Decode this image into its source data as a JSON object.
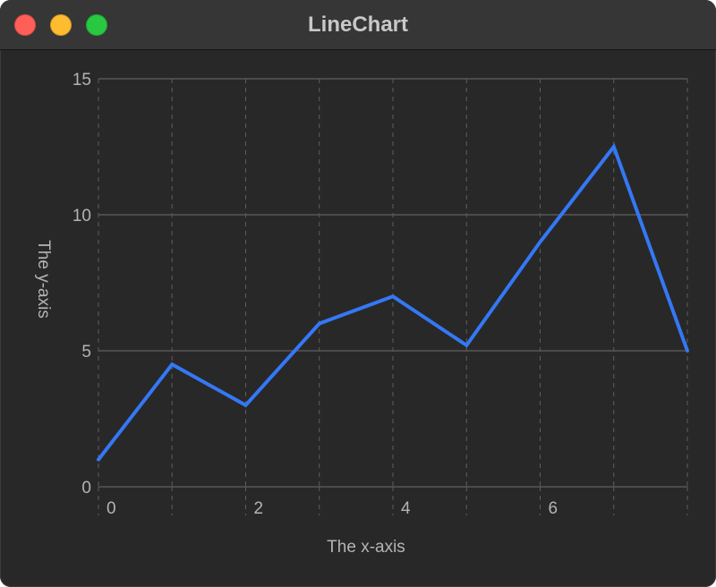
{
  "window": {
    "title": "LineChart",
    "background": "#282828",
    "titlebar_color": "#363636",
    "controls": {
      "close_color": "#ff5f57",
      "minimize_color": "#febc2e",
      "zoom_color": "#28c840"
    }
  },
  "chart_data": {
    "type": "line",
    "title": "",
    "xlabel": "The x-axis",
    "ylabel": "The y-axis",
    "xlim": [
      0,
      8
    ],
    "ylim": [
      0,
      15
    ],
    "x_ticks": [
      0,
      2,
      4,
      6
    ],
    "y_ticks": [
      0,
      5,
      10,
      15
    ],
    "grid": true,
    "line_color": "#3478f6",
    "series": [
      {
        "x": [
          0,
          1,
          2,
          3,
          4,
          5,
          6,
          7,
          8
        ],
        "values": [
          1,
          4.5,
          3,
          6,
          7,
          5.2,
          9,
          12.5,
          5
        ]
      }
    ]
  }
}
